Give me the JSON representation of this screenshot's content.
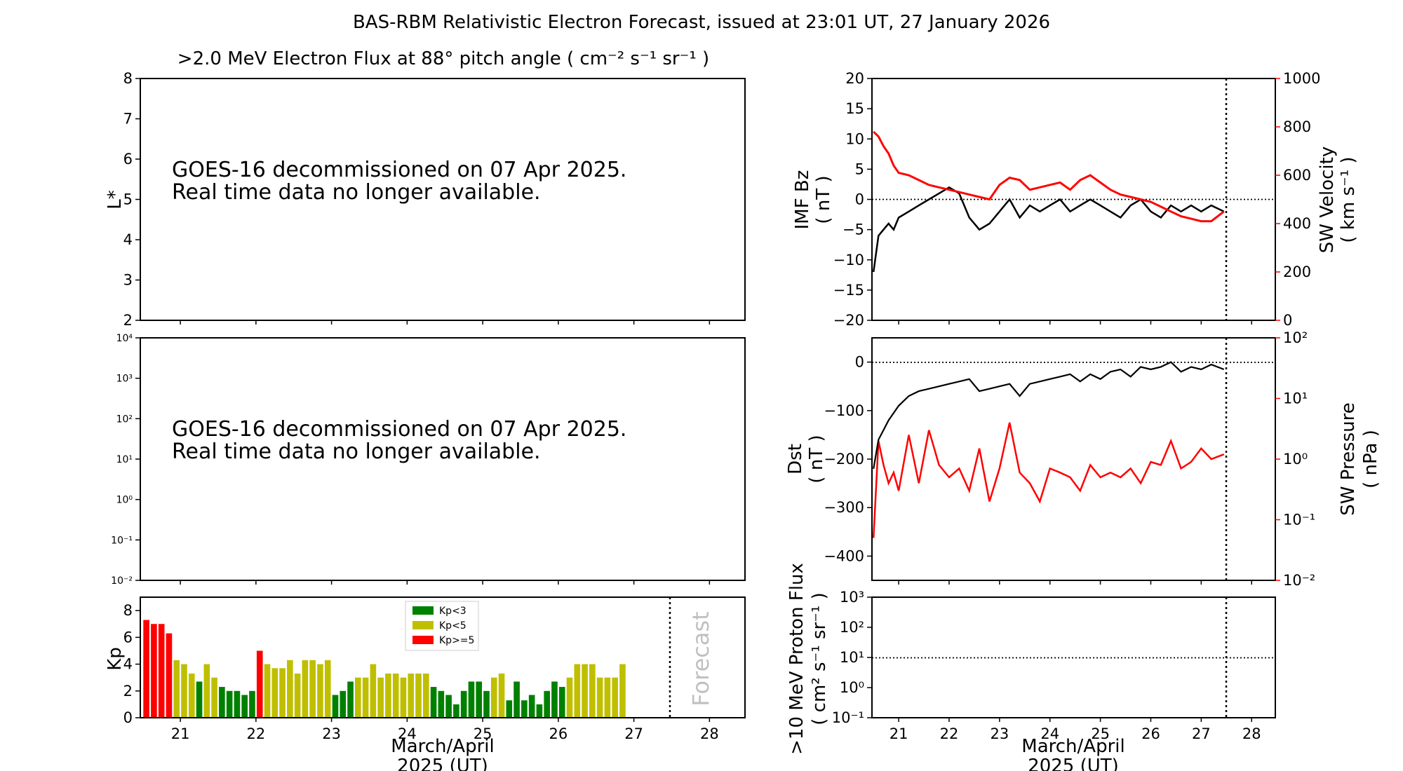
{
  "figure": {
    "title": "BAS-RBM Relativistic Electron Forecast, issued at 23:01 UT, 27 January 2026",
    "xaxis_label_line1": "March/April",
    "xaxis_label_line2": "2025 (UT)",
    "forecast_label": "Forecast",
    "colors": {
      "black": "#000000",
      "red": "#ff0000",
      "green": "#008000",
      "yellow": "#bfbf00",
      "gray": "#c0c0c0"
    }
  },
  "chart_data": [
    {
      "id": "flux_lstar",
      "type": "line",
      "title": ">2.0 MeV Electron Flux at 88° pitch angle ( cm⁻² s⁻¹ sr⁻¹ )",
      "ylabel": "L*",
      "ylim": [
        2,
        8
      ],
      "yticks": [
        "2",
        "3",
        "4",
        "5",
        "6",
        "7",
        "8"
      ],
      "message_line1": "GOES-16 decommissioned on 07 Apr 2025.",
      "message_line2": "Real time data no longer available."
    },
    {
      "id": "flux_log",
      "type": "line",
      "yscale": "log",
      "ylim": [
        0.01,
        10000
      ],
      "yticks": [
        "10⁻²",
        "10⁻¹",
        "10⁰",
        "10¹",
        "10²",
        "10³",
        "10⁴"
      ],
      "message_line1": "GOES-16 decommissioned on 07 Apr 2025.",
      "message_line2": "Real time data no longer available."
    },
    {
      "id": "kp",
      "type": "bar",
      "ylabel": "Kp",
      "ylim": [
        0,
        9
      ],
      "yticks": [
        "0",
        "2",
        "4",
        "6",
        "8"
      ],
      "xlim": [
        20.47,
        28.47
      ],
      "xticks": [
        "21",
        "22",
        "23",
        "24",
        "25",
        "26",
        "27",
        "28"
      ],
      "bar_start": 20.5,
      "bar_step": 0.1,
      "now": 27.47,
      "legend": [
        "Kp<3",
        "Kp<5",
        "Kp>=5"
      ],
      "legend_position": "top-center",
      "values": [
        7.3,
        7.0,
        7.0,
        6.3,
        4.3,
        4.0,
        3.3,
        2.7,
        4.0,
        3.0,
        2.3,
        2.0,
        2.0,
        1.7,
        2.0,
        5.0,
        4.0,
        3.7,
        3.7,
        4.3,
        3.3,
        4.3,
        4.3,
        4.0,
        4.3,
        1.7,
        2.0,
        2.7,
        3.0,
        3.0,
        4.0,
        3.0,
        3.3,
        3.3,
        3.0,
        3.3,
        3.3,
        3.3,
        2.3,
        2.0,
        1.7,
        1.0,
        2.0,
        2.7,
        2.7,
        2.0,
        3.0,
        3.3,
        1.3,
        2.7,
        1.3,
        1.7,
        1.0,
        2.0,
        2.7,
        2.3,
        3.0,
        4.0,
        4.0,
        4.0,
        3.0,
        3.0,
        3.0,
        4.0
      ]
    },
    {
      "id": "imf_sw",
      "type": "line",
      "ylabel_line1": "IMF Bz",
      "ylabel_line2": "( nT )",
      "ylim": [
        -20,
        20
      ],
      "yticks": [
        "−20",
        "−15",
        "−10",
        "−5",
        "0",
        "5",
        "10",
        "15",
        "20"
      ],
      "y2label_line1": "SW Velocity",
      "y2label_line2": "( km s⁻¹ )",
      "y2lim": [
        0,
        1000
      ],
      "y2ticks": [
        "0",
        "200",
        "400",
        "600",
        "800",
        "1000"
      ],
      "xlim": [
        20.47,
        28.47
      ],
      "now": 27.47,
      "series": [
        {
          "name": "IMF Bz",
          "color": "#000000",
          "x": [
            20.5,
            20.6,
            20.7,
            20.8,
            20.9,
            21.0,
            21.2,
            21.4,
            21.6,
            21.8,
            22.0,
            22.2,
            22.4,
            22.6,
            22.8,
            23.0,
            23.2,
            23.4,
            23.6,
            23.8,
            24.0,
            24.2,
            24.4,
            24.6,
            24.8,
            25.0,
            25.2,
            25.4,
            25.6,
            25.8,
            26.0,
            26.2,
            26.4,
            26.6,
            26.8,
            27.0,
            27.2,
            27.45
          ],
          "y": [
            -12,
            -6,
            -5,
            -4,
            -5,
            -3,
            -2,
            -1,
            0,
            1,
            2,
            1,
            -3,
            -5,
            -4,
            -2,
            0,
            -3,
            -1,
            -2,
            -1,
            0,
            -2,
            -1,
            0,
            -1,
            -2,
            -3,
            -1,
            0,
            -2,
            -3,
            -1,
            -2,
            -1,
            -2,
            -1,
            -2
          ]
        },
        {
          "name": "SW Velocity",
          "color": "#ff0000",
          "x": [
            20.5,
            20.6,
            20.7,
            20.8,
            20.9,
            21.0,
            21.2,
            21.4,
            21.6,
            21.8,
            22.0,
            22.2,
            22.4,
            22.6,
            22.8,
            23.0,
            23.2,
            23.4,
            23.6,
            23.8,
            24.0,
            24.2,
            24.4,
            24.6,
            24.8,
            25.0,
            25.2,
            25.4,
            25.6,
            25.8,
            26.0,
            26.2,
            26.4,
            26.6,
            26.8,
            27.0,
            27.2,
            27.45
          ],
          "y": [
            780,
            760,
            720,
            690,
            640,
            610,
            600,
            580,
            560,
            550,
            540,
            530,
            520,
            510,
            500,
            560,
            590,
            580,
            540,
            550,
            560,
            570,
            540,
            580,
            600,
            570,
            540,
            520,
            510,
            500,
            490,
            470,
            450,
            430,
            420,
            410,
            410,
            450
          ]
        }
      ]
    },
    {
      "id": "dst_pressure",
      "type": "line",
      "ylabel_line1": "Dst",
      "ylabel_line2": "( nT )",
      "ylim": [
        -450,
        50
      ],
      "yticks": [
        "−400",
        "−300",
        "−200",
        "−100",
        "0"
      ],
      "y2label_line1": "SW Pressure",
      "y2label_line2": "( nPa )",
      "y2scale": "log",
      "y2lim": [
        0.01,
        100
      ],
      "y2ticks": [
        "10⁻²",
        "10⁻¹",
        "10⁰",
        "10¹",
        "10²"
      ],
      "xlim": [
        20.47,
        28.47
      ],
      "now": 27.47,
      "series": [
        {
          "name": "Dst",
          "color": "#000000",
          "x": [
            20.5,
            20.6,
            20.7,
            20.8,
            21.0,
            21.2,
            21.4,
            21.6,
            21.8,
            22.0,
            22.2,
            22.4,
            22.6,
            22.8,
            23.0,
            23.2,
            23.4,
            23.6,
            23.8,
            24.0,
            24.2,
            24.4,
            24.6,
            24.8,
            25.0,
            25.2,
            25.4,
            25.6,
            25.8,
            26.0,
            26.2,
            26.4,
            26.6,
            26.8,
            27.0,
            27.2,
            27.45
          ],
          "y": [
            -220,
            -160,
            -140,
            -120,
            -90,
            -70,
            -60,
            -55,
            -50,
            -45,
            -40,
            -35,
            -60,
            -55,
            -50,
            -45,
            -70,
            -45,
            -40,
            -35,
            -30,
            -25,
            -40,
            -25,
            -35,
            -20,
            -15,
            -30,
            -10,
            -15,
            -10,
            0,
            -20,
            -10,
            -15,
            -5,
            -15
          ]
        },
        {
          "name": "SW Pressure",
          "color": "#ff0000",
          "x": [
            20.5,
            20.6,
            20.7,
            20.8,
            20.9,
            21.0,
            21.2,
            21.4,
            21.6,
            21.8,
            22.0,
            22.2,
            22.4,
            22.6,
            22.8,
            23.0,
            23.2,
            23.4,
            23.6,
            23.8,
            24.0,
            24.2,
            24.4,
            24.6,
            24.8,
            25.0,
            25.2,
            25.4,
            25.6,
            25.8,
            26.0,
            26.2,
            26.4,
            26.6,
            26.8,
            27.0,
            27.2,
            27.45
          ],
          "y": [
            0.05,
            2.0,
            0.8,
            0.4,
            0.6,
            0.3,
            2.5,
            0.4,
            3.0,
            0.8,
            0.5,
            0.7,
            0.3,
            1.5,
            0.2,
            0.7,
            4.0,
            0.6,
            0.4,
            0.2,
            0.7,
            0.6,
            0.5,
            0.3,
            0.8,
            0.5,
            0.6,
            0.5,
            0.7,
            0.4,
            0.9,
            0.8,
            2.0,
            0.7,
            0.9,
            1.5,
            1.0,
            1.2
          ]
        }
      ]
    },
    {
      "id": "proton",
      "type": "line",
      "ylabel_line1": ">10 MeV Proton Flux",
      "ylabel_line2": "( cm² s⁻¹ sr⁻¹ )",
      "yscale": "log",
      "ylim": [
        0.1,
        1000
      ],
      "yticks": [
        "10⁻¹",
        "10⁰",
        "10¹",
        "10²",
        "10³"
      ],
      "xlim": [
        20.47,
        28.47
      ],
      "xticks": [
        "21",
        "22",
        "23",
        "24",
        "25",
        "26",
        "27",
        "28"
      ],
      "threshold": 10,
      "now": 27.47
    }
  ]
}
